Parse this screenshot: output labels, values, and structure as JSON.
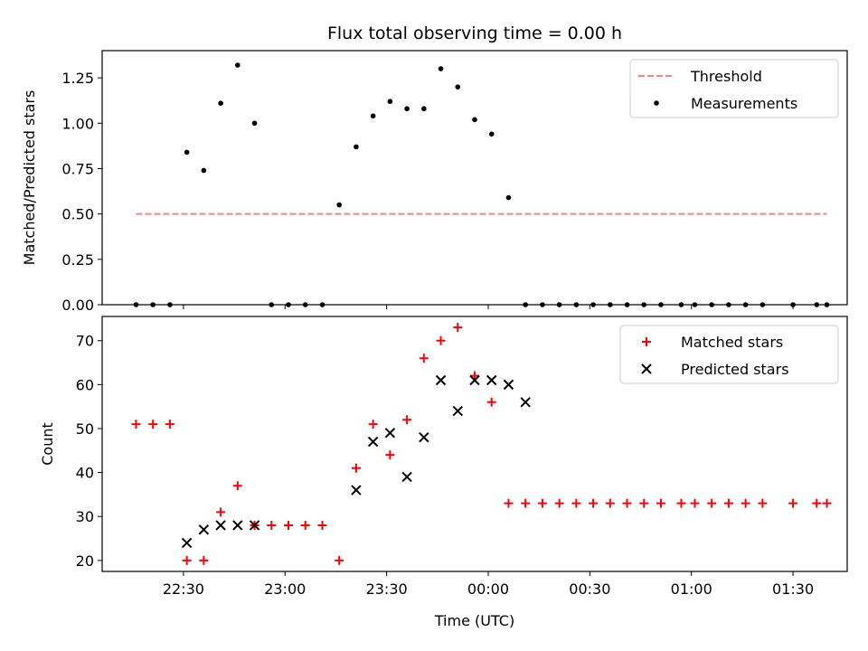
{
  "chart_data": [
    {
      "type": "scatter",
      "title": "Flux total observing time = 0.00 h",
      "xlabel": "",
      "ylabel": "Matched/Predicted stars",
      "x_unit": "time (UTC)",
      "xlim": [
        "22:06",
        "01:46"
      ],
      "ylim": [
        0,
        1.4
      ],
      "yticks": [
        "0.00",
        "0.25",
        "0.50",
        "0.75",
        "1.00",
        "1.25"
      ],
      "legend": "top-right",
      "series": [
        {
          "name": "Threshold",
          "kind": "dashed-line",
          "color": "#ff7f7f",
          "x": [
            "22:16",
            "01:40"
          ],
          "y": [
            0.5,
            0.5
          ]
        },
        {
          "name": "Measurements",
          "kind": "dots",
          "color": "#000000",
          "x": [
            "22:16",
            "22:21",
            "22:26",
            "22:31",
            "22:36",
            "22:41",
            "22:46",
            "22:51",
            "22:56",
            "23:01",
            "23:06",
            "23:11",
            "23:16",
            "23:21",
            "23:26",
            "23:31",
            "23:36",
            "23:41",
            "23:46",
            "23:51",
            "23:56",
            "00:01",
            "00:06",
            "00:11",
            "00:16",
            "00:21",
            "00:26",
            "00:31",
            "00:36",
            "00:41",
            "00:46",
            "00:51",
            "00:57",
            "01:01",
            "01:06",
            "01:11",
            "01:16",
            "01:21",
            "01:30",
            "01:37",
            "01:40"
          ],
          "y": [
            0,
            0,
            0,
            0.84,
            0.74,
            1.11,
            1.32,
            1.0,
            0,
            0,
            0,
            0,
            0.55,
            0.87,
            1.04,
            1.12,
            1.08,
            1.08,
            1.3,
            1.2,
            1.02,
            0.94,
            0.59,
            0,
            0,
            0,
            0,
            0,
            0,
            0,
            0,
            0,
            0,
            0,
            0,
            0,
            0,
            0,
            0,
            0,
            0
          ]
        }
      ]
    },
    {
      "type": "scatter",
      "title": "",
      "xlabel": "Time (UTC)",
      "ylabel": "Count",
      "x_unit": "time (UTC)",
      "xlim": [
        "22:06",
        "01:46"
      ],
      "ylim": [
        17.5,
        75.5
      ],
      "xticks": [
        "22:30",
        "23:00",
        "23:30",
        "00:00",
        "00:30",
        "01:00",
        "01:30"
      ],
      "yticks": [
        "20",
        "30",
        "40",
        "50",
        "60",
        "70"
      ],
      "legend": "top-right",
      "series": [
        {
          "name": "Matched stars",
          "marker": "+",
          "color": "#ff0000",
          "x": [
            "22:16",
            "22:21",
            "22:26",
            "22:31",
            "22:36",
            "22:41",
            "22:46",
            "22:51",
            "22:56",
            "23:01",
            "23:06",
            "23:11",
            "23:16",
            "23:21",
            "23:26",
            "23:31",
            "23:36",
            "23:41",
            "23:46",
            "23:51",
            "23:56",
            "00:01",
            "00:06",
            "00:11",
            "00:16",
            "00:21",
            "00:26",
            "00:31",
            "00:36",
            "00:41",
            "00:46",
            "00:51",
            "00:57",
            "01:01",
            "01:06",
            "01:11",
            "01:16",
            "01:21",
            "01:30",
            "01:37",
            "01:40"
          ],
          "y": [
            51,
            51,
            51,
            20,
            20,
            31,
            37,
            28,
            28,
            28,
            28,
            28,
            20,
            41,
            51,
            44,
            52,
            66,
            70,
            73,
            62,
            56,
            33,
            33,
            33,
            33,
            33,
            33,
            33,
            33,
            33,
            33,
            33,
            33,
            33,
            33,
            33,
            33,
            33,
            33,
            33
          ]
        },
        {
          "name": "Predicted stars",
          "marker": "x",
          "color": "#000000",
          "x": [
            "22:31",
            "22:36",
            "22:41",
            "22:46",
            "22:51",
            "23:21",
            "23:26",
            "23:31",
            "23:36",
            "23:41",
            "23:46",
            "23:51",
            "23:56",
            "00:01",
            "00:06",
            "00:11"
          ],
          "y": [
            24,
            27,
            28,
            28,
            28,
            36,
            47,
            49,
            39,
            48,
            61,
            54,
            61,
            61,
            60,
            56
          ]
        }
      ]
    }
  ]
}
